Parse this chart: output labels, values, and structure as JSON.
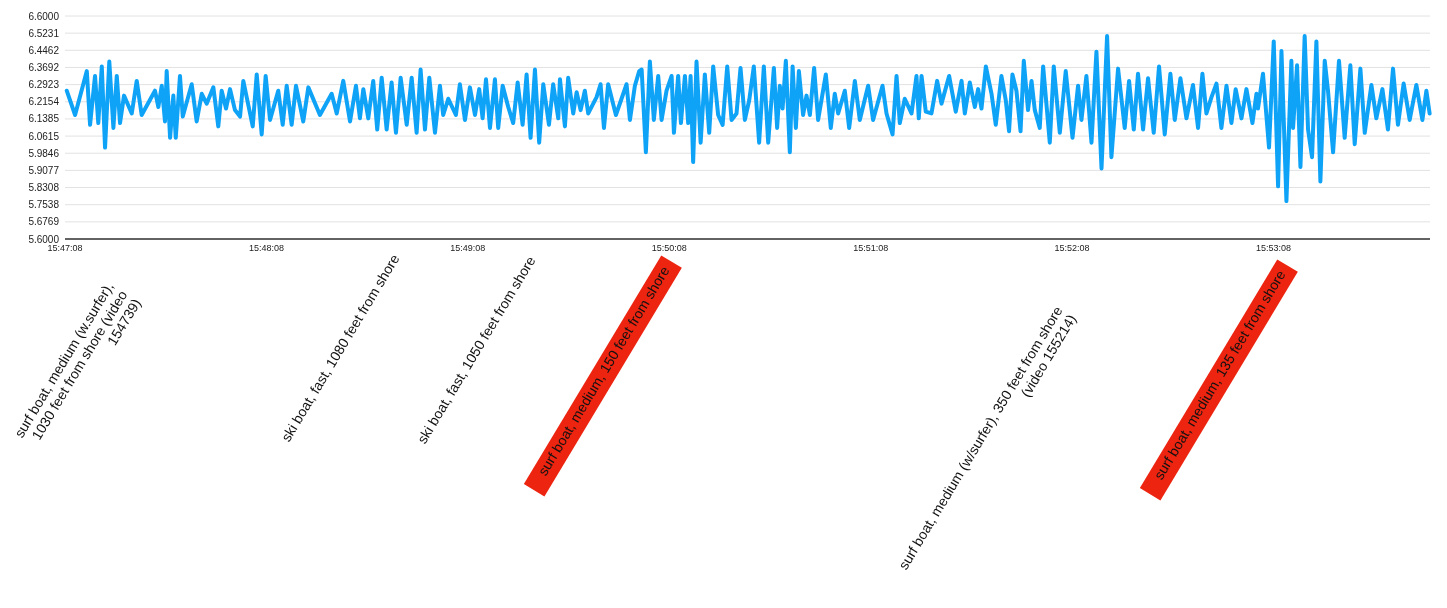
{
  "chart_data": {
    "type": "line",
    "xlim": [
      15.785556,
      15.8985
    ],
    "xticks": [
      {
        "value": 15.785556,
        "label": "15:47:08"
      },
      {
        "value": 15.802222,
        "label": "15:48:08"
      },
      {
        "value": 15.818889,
        "label": "15:49:08"
      },
      {
        "value": 15.835556,
        "label": "15:50:08"
      },
      {
        "value": 15.852222,
        "label": "15:51:08"
      },
      {
        "value": 15.868889,
        "label": "15:52:08"
      },
      {
        "value": 15.885556,
        "label": "15:53:08"
      }
    ],
    "ylim": [
      5.6,
      6.6
    ],
    "yticks": [
      {
        "value": 5.6,
        "label": "5.6000"
      },
      5.6769,
      5.7538,
      5.8308,
      5.9077,
      5.9846,
      6.0615,
      6.1385,
      6.2154,
      6.2923,
      6.3692,
      6.4462,
      6.5231,
      {
        "value": 6.6,
        "label": "6.6000"
      }
    ],
    "grid": "y",
    "series": [
      {
        "color": "#0fa3f8",
        "x": [
          15.7857,
          15.78639,
          15.78736,
          15.78763,
          15.78804,
          15.78831,
          15.7886,
          15.78887,
          15.78922,
          15.78956,
          15.78984,
          15.79011,
          15.79044,
          15.79108,
          15.79149,
          15.7919,
          15.793,
          15.79328,
          15.79356,
          15.79383,
          15.79397,
          15.79425,
          15.79452,
          15.79472,
          15.79507,
          15.7953,
          15.79604,
          15.79645,
          15.79687,
          15.79728,
          15.79783,
          15.79824,
          15.79852,
          15.79888,
          15.79921,
          15.79962,
          15.80004,
          15.80031,
          15.80109,
          15.80142,
          15.80183,
          15.80216,
          15.80252,
          15.8032,
          15.80357,
          15.8039,
          15.80431,
          15.80467,
          15.80527,
          15.80569,
          15.80665,
          15.80762,
          15.80804,
          15.80858,
          15.80914,
          15.80963,
          15.80996,
          15.81024,
          15.81065,
          15.81106,
          15.81139,
          15.81176,
          15.81217,
          15.81258,
          15.81294,
          15.81333,
          15.81383,
          15.81424,
          15.81465,
          15.81498,
          15.81534,
          15.8157,
          15.81617,
          15.81658,
          15.81685,
          15.81727,
          15.8179,
          15.81823,
          15.81865,
          15.81906,
          15.81948,
          15.81983,
          15.82011,
          15.82039,
          15.82072,
          15.82113,
          15.8214,
          15.82177,
          15.82223,
          15.82264,
          15.82301,
          15.82342,
          15.82375,
          15.82408,
          15.82444,
          15.82479,
          15.82513,
          15.8256,
          15.82595,
          15.82637,
          15.82651,
          15.82692,
          15.82719,
          15.82761,
          15.82789,
          15.82822,
          15.82857,
          15.82885,
          15.82954,
          15.82987,
          15.83015,
          15.8305,
          15.83114,
          15.83202,
          15.8323,
          15.83271,
          15.83307,
          15.83327,
          15.83362,
          15.83395,
          15.83428,
          15.83464,
          15.83492,
          15.83533,
          15.83575,
          15.83594,
          15.83629,
          15.83652,
          15.83685,
          15.83712,
          15.83732,
          15.83753,
          15.83781,
          15.83815,
          15.8385,
          15.83886,
          15.83919,
          15.8396,
          15.83997,
          15.84035,
          15.84071,
          15.84112,
          15.84145,
          15.84181,
          15.84217,
          15.84255,
          15.84299,
          15.84338,
          15.84374,
          15.84421,
          15.84448,
          15.8447,
          15.84493,
          15.8452,
          15.84553,
          15.84576,
          15.84603,
          15.84628,
          15.84663,
          15.84691,
          15.84719,
          15.84754,
          15.84787,
          15.84851,
          15.84892,
          15.84925,
          15.84953,
          15.85008,
          15.85044,
          15.85091,
          15.85132,
          15.85201,
          15.85242,
          15.8532,
          15.85353,
          15.85403,
          15.85436,
          15.85463,
          15.85504,
          15.8556,
          15.85601,
          15.8562,
          15.85643,
          15.85678,
          15.85725,
          15.85772,
          15.85808,
          15.85871,
          15.85926,
          15.85974,
          15.86001,
          15.86042,
          15.86084,
          15.86111,
          15.86139,
          15.86175,
          15.86222,
          15.86257,
          15.86304,
          15.8634,
          15.86367,
          15.86395,
          15.86428,
          15.86462,
          15.86489,
          15.86524,
          15.86553,
          15.8658,
          15.86621,
          15.86649,
          15.86704,
          15.86737,
          15.86787,
          15.86836,
          15.86892,
          15.86938,
          15.86966,
          15.87007,
          15.87049,
          15.8709,
          15.87132,
          15.87178,
          15.87214,
          15.87269,
          15.87324,
          15.8736,
          15.87399,
          15.87434,
          15.87476,
          15.87517,
          15.87564,
          15.87608,
          15.87655,
          15.87702,
          15.87738,
          15.87785,
          15.87835,
          15.87889,
          15.87931,
          15.87967,
          15.88,
          15.88042,
          15.88083,
          15.88124,
          15.88166,
          15.88207,
          15.88242,
          15.8829,
          15.88331,
          15.88381,
          15.88414,
          15.88427,
          15.88468,
          15.88518,
          15.88557,
          15.88593,
          15.88621,
          15.88662,
          15.88703,
          15.88717,
          15.8875,
          15.88778,
          15.88813,
          15.88841,
          15.88874,
          15.8891,
          15.88943,
          15.88979,
          15.89006,
          15.89048,
          15.89097,
          15.89144,
          15.89191,
          15.89227,
          15.89274,
          15.8931,
          15.89365,
          15.89406,
          15.89456,
          15.89502,
          15.89544,
          15.89585,
          15.89632,
          15.89682,
          15.89737,
          15.89787,
          15.8982,
          15.89847
        ],
        "values": [
          6.265,
          6.156,
          6.353,
          6.112,
          6.331,
          6.12,
          6.374,
          6.01,
          6.396,
          6.098,
          6.331,
          6.12,
          6.243,
          6.163,
          6.309,
          6.156,
          6.265,
          6.192,
          6.287,
          6.127,
          6.353,
          6.054,
          6.243,
          6.054,
          6.331,
          6.149,
          6.294,
          6.127,
          6.251,
          6.207,
          6.28,
          6.105,
          6.265,
          6.185,
          6.272,
          6.178,
          6.149,
          6.309,
          6.105,
          6.338,
          6.069,
          6.331,
          6.134,
          6.265,
          6.112,
          6.287,
          6.112,
          6.287,
          6.127,
          6.28,
          6.156,
          6.251,
          6.163,
          6.309,
          6.127,
          6.287,
          6.141,
          6.272,
          6.141,
          6.309,
          6.091,
          6.323,
          6.091,
          6.302,
          6.076,
          6.323,
          6.112,
          6.323,
          6.076,
          6.36,
          6.091,
          6.323,
          6.076,
          6.287,
          6.156,
          6.229,
          6.156,
          6.294,
          6.134,
          6.28,
          6.156,
          6.272,
          6.141,
          6.316,
          6.098,
          6.316,
          6.098,
          6.287,
          6.192,
          6.12,
          6.302,
          6.112,
          6.338,
          6.054,
          6.36,
          6.032,
          6.294,
          6.112,
          6.294,
          6.141,
          6.316,
          6.105,
          6.323,
          6.163,
          6.258,
          6.178,
          6.265,
          6.163,
          6.236,
          6.294,
          6.098,
          6.294,
          6.156,
          6.294,
          6.134,
          6.287,
          6.353,
          6.36,
          5.989,
          6.396,
          6.134,
          6.331,
          6.134,
          6.265,
          6.331,
          6.076,
          6.331,
          6.12,
          6.331,
          6.12,
          6.331,
          5.945,
          6.396,
          6.032,
          6.338,
          6.076,
          6.374,
          6.156,
          6.112,
          6.374,
          6.134,
          6.163,
          6.367,
          6.134,
          6.222,
          6.374,
          6.032,
          6.374,
          6.032,
          6.367,
          6.098,
          6.287,
          6.185,
          6.399,
          5.989,
          6.374,
          6.098,
          6.353,
          6.156,
          6.243,
          6.156,
          6.367,
          6.134,
          6.338,
          6.098,
          6.251,
          6.163,
          6.265,
          6.098,
          6.309,
          6.134,
          6.287,
          6.134,
          6.287,
          6.163,
          6.069,
          6.331,
          6.12,
          6.229,
          6.163,
          6.331,
          6.141,
          6.331,
          6.171,
          6.163,
          6.309,
          6.207,
          6.331,
          6.171,
          6.309,
          6.163,
          6.302,
          6.192,
          6.272,
          6.185,
          6.374,
          6.251,
          6.112,
          6.331,
          6.222,
          6.083,
          6.338,
          6.265,
          6.083,
          6.399,
          6.178,
          6.309,
          6.178,
          6.098,
          6.374,
          6.032,
          6.374,
          6.076,
          6.353,
          6.054,
          6.287,
          6.134,
          6.331,
          6.032,
          6.44,
          5.916,
          6.51,
          5.967,
          6.364,
          6.098,
          6.309,
          6.091,
          6.341,
          6.091,
          6.321,
          6.076,
          6.374,
          6.069,
          6.341,
          6.134,
          6.321,
          6.141,
          6.291,
          6.098,
          6.341,
          6.163,
          6.236,
          6.297,
          6.098,
          6.287,
          6.12,
          6.272,
          6.141,
          6.272,
          6.12,
          6.251,
          6.185,
          6.341,
          6.01,
          6.486,
          5.836,
          6.443,
          5.77,
          6.399,
          6.098,
          6.379,
          5.923,
          6.51,
          6.091,
          5.967,
          6.486,
          5.858,
          6.399,
          6.265,
          5.989,
          6.399,
          6.054,
          6.379,
          6.025,
          6.364,
          6.076,
          6.291,
          6.141,
          6.272,
          6.091,
          6.364,
          6.112,
          6.297,
          6.134,
          6.291,
          6.134,
          6.265,
          6.163
        ]
      }
    ],
    "annotations": [
      "surf boat, medium (w.surfer), 1030 feet from shore (video 154739)",
      "ski boat, fast, 1080 feet from shore",
      "ski boat, fast, 1050 feet from shore",
      "surf boat, medium, 150 feet from shore",
      "surf boat, medium (w/surfer), 350 feet from shore (video 155214)",
      "surf boat, medium, 135 feet from shore"
    ]
  }
}
